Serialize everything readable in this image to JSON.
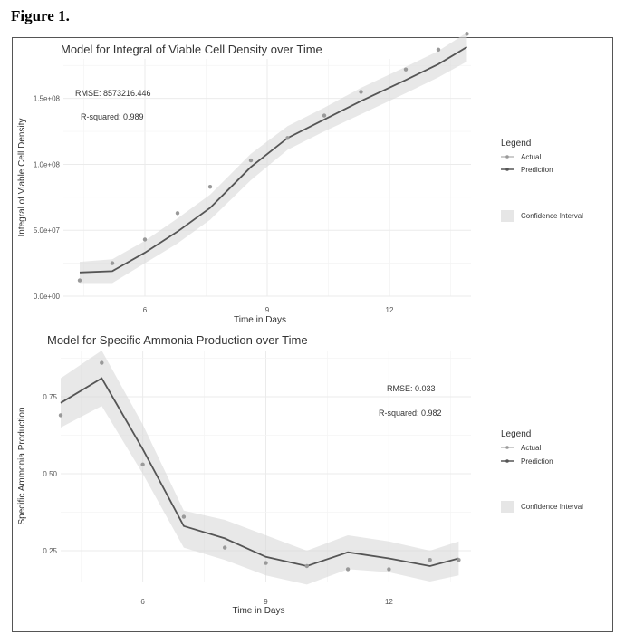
{
  "figure_label": "Figure 1.",
  "chart_data": [
    {
      "type": "line",
      "title": "Model for Integral of Viable Cell Density over Time",
      "xlabel": "Time in Days",
      "ylabel": "Integral of Viable Cell Density",
      "xlim": [
        4,
        14
      ],
      "ylim": [
        0,
        180000000
      ],
      "xticks": [
        6,
        9,
        12
      ],
      "xtick_labels": [
        "6",
        "9",
        "12"
      ],
      "yticks": [
        0,
        50000000,
        100000000,
        150000000
      ],
      "ytick_labels": [
        "0.0e+00",
        "5.0e+07",
        "1.0e+08",
        "1.5e+08"
      ],
      "grid": true,
      "annotations": [
        "RMSE: 8573216.446",
        "R-squared: 0.989"
      ],
      "legend": {
        "title": "Legend",
        "position": "right",
        "entries": [
          "Actual",
          "Prediction",
          "Confidence Interval"
        ]
      },
      "x": [
        4.4,
        5.2,
        6,
        6.8,
        7.6,
        8.6,
        9.5,
        10.4,
        11.3,
        12.4,
        13.2,
        13.9
      ],
      "series": [
        {
          "name": "Actual",
          "values": [
            12000000,
            25000000,
            43000000,
            63000000,
            83000000,
            103000000,
            120000000,
            137000000,
            155000000,
            172000000,
            187000000,
            199000000
          ]
        },
        {
          "name": "Prediction",
          "values": [
            18000000,
            19000000,
            33000000,
            49000000,
            67000000,
            98000000,
            120000000,
            134000000,
            148000000,
            164000000,
            176000000,
            189000000
          ]
        },
        {
          "name": "Confidence Interval",
          "lower": [
            10000000,
            10000000,
            25000000,
            40000000,
            58000000,
            88000000,
            111000000,
            125000000,
            138000000,
            154000000,
            166000000,
            178000000
          ],
          "upper": [
            26000000,
            28000000,
            42000000,
            59000000,
            77000000,
            108000000,
            129000000,
            143000000,
            158000000,
            174000000,
            186000000,
            200000000
          ]
        }
      ]
    },
    {
      "type": "line",
      "title": "Model for Specific Ammonia Production over Time",
      "xlabel": "Time in Days",
      "ylabel": "Specific Ammonia Production",
      "xlim": [
        4,
        14
      ],
      "ylim": [
        0.15,
        0.9
      ],
      "xticks": [
        6,
        9,
        12
      ],
      "xtick_labels": [
        "6",
        "9",
        "12"
      ],
      "yticks": [
        0.25,
        0.5,
        0.75
      ],
      "ytick_labels": [
        "0.25",
        "0.50",
        "0.75"
      ],
      "grid": true,
      "annotations": [
        "RMSE: 0.033",
        "R-squared: 0.982"
      ],
      "legend": {
        "title": "Legend",
        "position": "right",
        "entries": [
          "Actual",
          "Prediction",
          "Confidence Interval"
        ]
      },
      "x": [
        4.0,
        5.0,
        6.0,
        7.0,
        8.0,
        9.0,
        10.0,
        11.0,
        12.0,
        13.0,
        13.7
      ],
      "series": [
        {
          "name": "Actual",
          "values": [
            0.69,
            0.86,
            0.53,
            0.36,
            0.26,
            0.21,
            0.2,
            0.19,
            0.19,
            0.22,
            0.22
          ]
        },
        {
          "name": "Prediction",
          "values": [
            0.73,
            0.81,
            0.58,
            0.33,
            0.29,
            0.23,
            0.2,
            0.245,
            0.225,
            0.2,
            0.225
          ]
        },
        {
          "name": "Confidence Interval",
          "lower": [
            0.65,
            0.72,
            0.5,
            0.26,
            0.22,
            0.17,
            0.14,
            0.19,
            0.18,
            0.15,
            0.17
          ],
          "upper": [
            0.81,
            0.9,
            0.66,
            0.38,
            0.35,
            0.3,
            0.25,
            0.3,
            0.28,
            0.25,
            0.28
          ]
        }
      ]
    }
  ]
}
